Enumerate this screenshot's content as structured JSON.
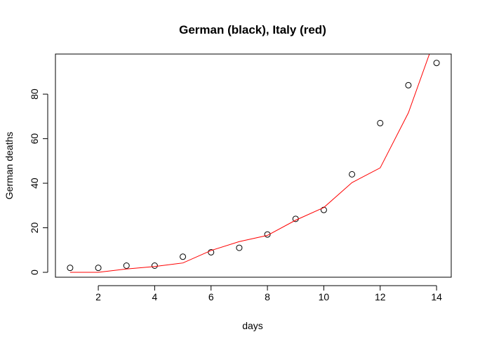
{
  "chart_data": {
    "type": "scatter",
    "title": "German (black), Italy (red)",
    "xlabel": "days",
    "ylabel": "German deaths",
    "xlim": [
      0.48,
      14.52
    ],
    "ylim": [
      -2.2,
      98
    ],
    "x_ticks": [
      2,
      4,
      6,
      8,
      10,
      12,
      14
    ],
    "y_ticks": [
      0,
      20,
      40,
      60,
      80
    ],
    "grid": false,
    "legend": "none",
    "series": [
      {
        "style": "points",
        "color": "#000000",
        "x": [
          1,
          2,
          3,
          4,
          5,
          6,
          7,
          8,
          9,
          10,
          11,
          12,
          13,
          14
        ],
        "y": [
          2,
          2,
          3,
          3,
          7,
          9,
          11,
          17,
          24,
          28,
          44,
          67,
          84,
          94
        ]
      },
      {
        "style": "line",
        "color": "#ff0000",
        "x": [
          1,
          2,
          3,
          4,
          5,
          6,
          7,
          8,
          9,
          10,
          11,
          12,
          13,
          14
        ],
        "y": [
          0,
          0,
          1.5,
          2.6,
          4.2,
          9.8,
          13.8,
          16.6,
          23.4,
          29.1,
          40.3,
          46.9,
          71.6,
          107
        ]
      }
    ]
  }
}
